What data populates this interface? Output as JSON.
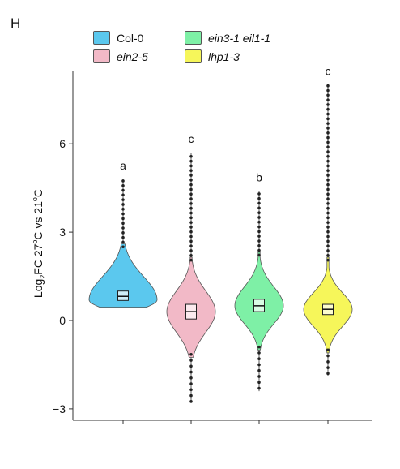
{
  "panel_label": "H",
  "chart_data": {
    "type": "violin",
    "ylabel_parts": {
      "pre": "Log",
      "sub": "2",
      "mid": "FC 27",
      "sup1": "o",
      "mid2": "C vs 21",
      "sup2": "o",
      "post": "C"
    },
    "ylim": [
      -3.5,
      8.5
    ],
    "yticks": [
      6,
      3,
      0,
      -3
    ],
    "ytick_labels": [
      "6",
      "3",
      "0",
      "−3"
    ],
    "grid": false,
    "legend_placement": "top",
    "series": [
      {
        "name": "Col-0",
        "italic": false,
        "color": "#5bc8ee",
        "min": 0.45,
        "max": 4.8,
        "q1": 0.68,
        "median": 0.82,
        "q3": 1.0,
        "mode": 0.7,
        "letter": "a"
      },
      {
        "name": "ein2-5",
        "italic": true,
        "color": "#f2b9c7",
        "min": -2.8,
        "max": 5.7,
        "q1": 0.05,
        "median": 0.3,
        "q3": 0.55,
        "mode": 0.3,
        "letter": "c"
      },
      {
        "name": "ein3-1 eil1-1",
        "italic": true,
        "color": "#7ef0a6",
        "min": -2.4,
        "max": 4.4,
        "q1": 0.3,
        "median": 0.5,
        "q3": 0.72,
        "mode": 0.5,
        "letter": "b"
      },
      {
        "name": "lhp1-3",
        "italic": true,
        "color": "#f6f65a",
        "min": -1.9,
        "max": 8.0,
        "q1": 0.2,
        "median": 0.38,
        "q3": 0.55,
        "mode": 0.38,
        "letter": "c"
      }
    ]
  }
}
